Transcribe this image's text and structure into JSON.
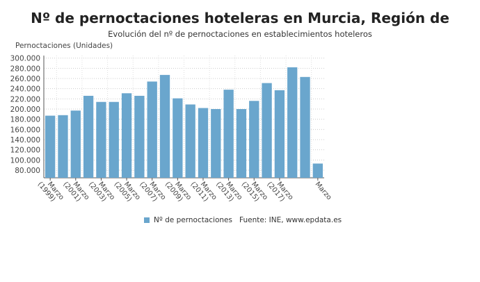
{
  "chart_data": {
    "type": "bar",
    "title": "Nº de pernoctaciones hoteleras en Murcia, Región de",
    "subtitle": "Evolución del nº de pernoctaciones en establecimientos hoteleros",
    "ylabel": "Pernoctaciones (Unidades)",
    "xlabel": "",
    "categories": [
      "Marzo (1999)",
      "Marzo (2000)",
      "Marzo (2001)",
      "Marzo (2002)",
      "Marzo (2003)",
      "Marzo (2004)",
      "Marzo (2005)",
      "Marzo (2006)",
      "Marzo (2007)",
      "Marzo (2008)",
      "Marzo (2009)",
      "Marzo (2010)",
      "Marzo (2011)",
      "Marzo (2012)",
      "Marzo (2013)",
      "Marzo (2014)",
      "Marzo (2015)",
      "Marzo (2016)",
      "Marzo (2017)",
      "Marzo (2018)",
      "Marzo (2019)",
      "Marzo (2020)"
    ],
    "tick_labels": [
      {
        "index": 0,
        "lines": [
          "Marzo",
          "(1999)"
        ]
      },
      {
        "index": 2,
        "lines": [
          "Marzo",
          "(2001)"
        ]
      },
      {
        "index": 4,
        "lines": [
          "Marzo",
          "(2003)"
        ]
      },
      {
        "index": 6,
        "lines": [
          "Marzo",
          "(2005)"
        ]
      },
      {
        "index": 8,
        "lines": [
          "Marzo",
          "(2007)"
        ]
      },
      {
        "index": 10,
        "lines": [
          "Marzo",
          "(2009)"
        ]
      },
      {
        "index": 12,
        "lines": [
          "Marzo",
          "(2011)"
        ]
      },
      {
        "index": 14,
        "lines": [
          "Marzo",
          "(2013)"
        ]
      },
      {
        "index": 16,
        "lines": [
          "Marzo",
          "(2015)"
        ]
      },
      {
        "index": 18,
        "lines": [
          "Marzo",
          "(2017)"
        ]
      },
      {
        "index": 21,
        "lines": [
          "Marzo"
        ]
      }
    ],
    "series": [
      {
        "name": "Nº de pernoctaciones",
        "color": "#6aa6cd",
        "values": [
          187000,
          188000,
          197000,
          226000,
          214000,
          214000,
          231000,
          226000,
          254000,
          267000,
          221000,
          209000,
          202000,
          200000,
          238000,
          200000,
          216000,
          251000,
          237000,
          282000,
          263000,
          93000
        ]
      }
    ],
    "yticks": [
      80000,
      100000,
      120000,
      140000,
      160000,
      180000,
      200000,
      220000,
      240000,
      260000,
      280000,
      300000
    ],
    "ytick_labels": [
      "80.000",
      "100.000",
      "120.000",
      "140.000",
      "160.000",
      "180.000",
      "200.000",
      "220.000",
      "240.000",
      "260.000",
      "280.000",
      "300.000"
    ],
    "ylim": [
      65000,
      305000
    ],
    "grid": true,
    "legend": "bottom",
    "source": "Fuente: INE, www.epdata.es"
  }
}
